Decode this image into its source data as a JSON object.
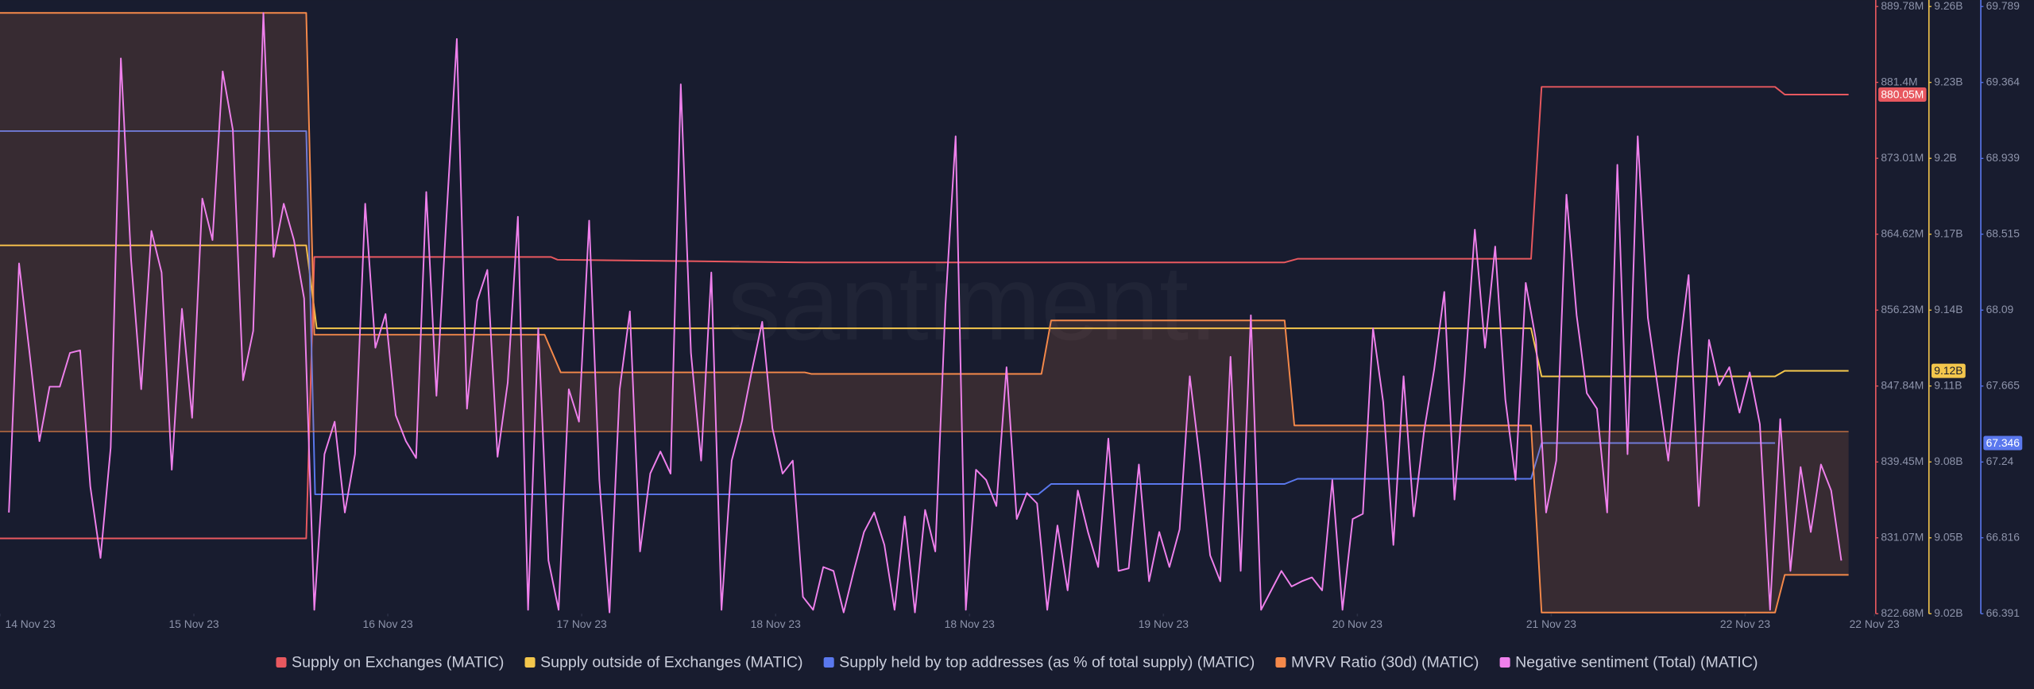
{
  "chart_data": {
    "type": "line",
    "watermark": "santiment.",
    "xlim": [
      0,
      232
    ],
    "xticks": [
      {
        "value": 0,
        "label": "14 Nov 23"
      },
      {
        "value": 24,
        "label": "15 Nov 23"
      },
      {
        "value": 48,
        "label": "16 Nov 23"
      },
      {
        "value": 72,
        "label": "17 Nov 23"
      },
      {
        "value": 96,
        "label": "18 Nov 23"
      },
      {
        "value": 120,
        "label": "18 Nov 23"
      },
      {
        "value": 144,
        "label": "19 Nov 23"
      },
      {
        "value": 168,
        "label": "20 Nov 23"
      },
      {
        "value": 192,
        "label": "21 Nov 23"
      },
      {
        "value": 216,
        "label": "22 Nov 23"
      },
      {
        "value": 232,
        "label": "22 Nov 23"
      }
    ],
    "ylim": [
      822.68,
      889.78
    ],
    "yticks": [
      {
        "value": 822.68,
        "label": "822.68M"
      },
      {
        "value": 831.07,
        "label": "831.07M"
      },
      {
        "value": 839.45,
        "label": "839.45M"
      },
      {
        "value": 847.84,
        "label": "847.84M"
      },
      {
        "value": 856.23,
        "label": "856.23M"
      },
      {
        "value": 864.62,
        "label": "864.62M"
      },
      {
        "value": 873.01,
        "label": "873.01M"
      },
      {
        "value": 881.4,
        "label": "881.4M"
      },
      {
        "value": 889.78,
        "label": "889.78M"
      }
    ],
    "y2lim": [
      9.02,
      9.26
    ],
    "y2ticks": [
      {
        "value": 9.02,
        "label": "9.02B"
      },
      {
        "value": 9.05,
        "label": "9.05B"
      },
      {
        "value": 9.08,
        "label": "9.08B"
      },
      {
        "value": 9.11,
        "label": "9.11B"
      },
      {
        "value": 9.14,
        "label": "9.14B"
      },
      {
        "value": 9.17,
        "label": "9.17B"
      },
      {
        "value": 9.2,
        "label": "9.2B"
      },
      {
        "value": 9.23,
        "label": "9.23B"
      },
      {
        "value": 9.26,
        "label": "9.26B"
      }
    ],
    "y3lim": [
      66.391,
      69.789
    ],
    "y3ticks": [
      66.391,
      66.816,
      67.24,
      67.665,
      68.09,
      68.515,
      68.939,
      69.364,
      69.789
    ],
    "series": [
      {
        "name": "Supply on Exchanges (MATIC)",
        "color": "#e8585f",
        "axis": "y",
        "x": [
          0,
          37.9,
          38.9,
          68.2,
          69.0,
          99.6,
          159.0,
          160.6,
          189.5,
          190.8,
          219.7,
          220.9,
          228.8
        ],
        "values": [
          831.0,
          831.0,
          862.1,
          862.1,
          861.8,
          861.5,
          861.5,
          861.9,
          861.9,
          880.9,
          880.9,
          880.05,
          880.05
        ],
        "value_labels": [
          null,
          null,
          null,
          null,
          null,
          null,
          null,
          null,
          null,
          null,
          null,
          null,
          "880.05M"
        ]
      },
      {
        "name": "Supply outside of Exchanges (MATIC)",
        "color": "#f3c64c",
        "axis": "y2",
        "x": [
          0,
          37.9,
          39.2,
          189.5,
          190.8,
          219.7,
          220.9,
          228.8
        ],
        "values": [
          9.1656,
          9.1656,
          9.1328,
          9.1328,
          9.1138,
          9.1138,
          9.116,
          9.116
        ],
        "value_labels": [
          null,
          null,
          null,
          null,
          null,
          null,
          null,
          "9.12B"
        ]
      },
      {
        "name": "Supply held by top addresses (as % of total supply) (MATIC)",
        "color": "#5a78ee",
        "axis": "y3",
        "x": [
          0,
          37.9,
          39.0,
          128.5,
          130.1,
          159.0,
          160.6,
          189.5,
          190.8,
          219.7
        ],
        "values": [
          69.092,
          69.092,
          67.059,
          67.059,
          67.117,
          67.117,
          67.146,
          67.146,
          67.346,
          67.346
        ]
      },
      {
        "name": "MVRV Ratio (30d) (MATIC)",
        "color": "#f5894a",
        "ylim": [
          -6,
          14
        ],
        "area": true,
        "x": [
          0,
          37.9,
          38.9,
          67.4,
          69.4,
          99.6,
          100.4,
          128.9,
          130.1,
          159.0,
          160.2,
          189.5,
          190.8,
          219.7,
          220.9,
          228.8
        ],
        "values": [
          13.79,
          13.79,
          3.19,
          3.19,
          1.95,
          1.95,
          1.9,
          1.9,
          3.66,
          3.66,
          0.2,
          0.2,
          -5.96,
          -5.96,
          -4.72,
          -4.72
        ]
      },
      {
        "name": "Negative sentiment (Total) (MATIC)",
        "color": "#ef80ec",
        "ylim": [
          0,
          93.6
        ],
        "x": [
          1.1,
          2.36,
          3.62,
          4.88,
          6.14,
          7.4,
          8.66,
          9.92,
          11.18,
          12.44,
          13.7,
          14.96,
          16.22,
          17.48,
          18.74,
          20,
          21.26,
          22.52,
          23.78,
          25.04,
          26.3,
          27.56,
          28.82,
          30.08,
          31.34,
          32.6,
          33.86,
          35.12,
          36.38,
          37.64,
          38.9,
          40.16,
          41.42,
          42.68,
          43.94,
          45.2,
          46.46,
          47.72,
          48.98,
          50.24,
          51.5,
          52.76,
          54.02,
          55.28,
          56.54,
          57.8,
          59.06,
          60.32,
          61.58,
          62.84,
          64.1,
          65.36,
          66.62,
          67.88,
          69.14,
          70.4,
          71.66,
          72.92,
          74.18,
          75.44,
          76.7,
          77.96,
          79.22,
          80.48,
          81.74,
          83,
          84.26,
          85.52,
          86.78,
          88.04,
          89.3,
          90.56,
          91.82,
          93.08,
          94.34,
          95.6,
          96.86,
          98.12,
          99.38,
          100.64,
          101.9,
          103.16,
          104.42,
          105.68,
          106.94,
          108.2,
          109.46,
          110.72,
          111.98,
          113.24,
          114.5,
          115.76,
          117.02,
          118.28,
          119.54,
          120.8,
          122.06,
          123.32,
          124.58,
          125.84,
          127.1,
          128.36,
          129.62,
          130.88,
          132.14,
          133.4,
          134.66,
          135.92,
          137.18,
          138.44,
          139.7,
          140.96,
          142.22,
          143.48,
          144.74,
          146,
          147.26,
          148.52,
          149.78,
          151.04,
          152.3,
          153.56,
          154.82,
          156.08,
          157.34,
          158.6,
          159.86,
          161.12,
          162.38,
          163.64,
          164.9,
          166.16,
          167.42,
          168.68,
          169.94,
          171.2,
          172.46,
          173.72,
          174.98,
          176.24,
          177.5,
          178.76,
          180.02,
          181.28,
          182.54,
          183.8,
          185.06,
          186.32,
          187.58,
          188.84,
          190.1,
          191.36,
          192.62,
          193.88,
          195.14,
          196.4,
          197.66,
          198.92,
          200.18,
          201.44,
          202.7,
          203.96,
          205.22,
          206.48,
          207.74,
          209,
          210.26,
          211.52,
          212.78,
          214.04,
          215.3,
          216.56,
          217.82,
          219.08,
          220.34,
          221.6,
          222.86,
          224.12,
          225.38,
          226.64,
          227.9
        ],
        "values": [
          15.6,
          54,
          40.6,
          26.6,
          35,
          35,
          40.2,
          40.6,
          19.6,
          8.6,
          25.6,
          85.6,
          54.6,
          34.6,
          59,
          52.6,
          22.2,
          47,
          30.2,
          64,
          57.6,
          83.6,
          74.6,
          36,
          43.6,
          92.6,
          55,
          63.2,
          57.6,
          48.6,
          0.6,
          24.6,
          29.6,
          15.6,
          24.6,
          63.2,
          41,
          46.2,
          30.6,
          26.6,
          24,
          65,
          33.6,
          61.6,
          88.6,
          31.6,
          48.2,
          53,
          24.2,
          35.6,
          61.2,
          0.6,
          44,
          8.2,
          0.6,
          34.6,
          29.6,
          60.6,
          20.6,
          0.2,
          34.6,
          46.6,
          9.6,
          21.6,
          25,
          21.6,
          81.6,
          40.2,
          23.6,
          52.6,
          0.6,
          23.6,
          29.6,
          37.6,
          45,
          28.6,
          21.6,
          23.6,
          2.6,
          0.6,
          7.2,
          6.6,
          0.2,
          6.6,
          12.6,
          15.6,
          10.6,
          0.6,
          15,
          0.2,
          16,
          9.6,
          47.6,
          73.6,
          0.6,
          22.2,
          20.6,
          16.6,
          38,
          14.6,
          18.6,
          17,
          0.6,
          13.6,
          3.6,
          19,
          12.6,
          7.2,
          27,
          6.6,
          7,
          23,
          5,
          12.6,
          7.2,
          13,
          36.6,
          23.6,
          9,
          5,
          39.6,
          6.6,
          46,
          0.6,
          3.6,
          6.6,
          4.2,
          5,
          5.6,
          3.6,
          20.6,
          0.6,
          14.6,
          15.4,
          44,
          32.6,
          10.6,
          36.6,
          15,
          28,
          37.6,
          49.6,
          17.6,
          36.6,
          59.2,
          41,
          56.6,
          33,
          20.6,
          51,
          42.2,
          15.6,
          23.6,
          64.6,
          46,
          34,
          31.6,
          15.6,
          69.2,
          24.6,
          73.6,
          45.6,
          34.6,
          23.6,
          39.6,
          52.2,
          16.6,
          42.2,
          35.2,
          38,
          31,
          37.2,
          29.2,
          0.6,
          30,
          6.6,
          22.6,
          12.6,
          23,
          19,
          8.2
        ]
      }
    ]
  }
}
